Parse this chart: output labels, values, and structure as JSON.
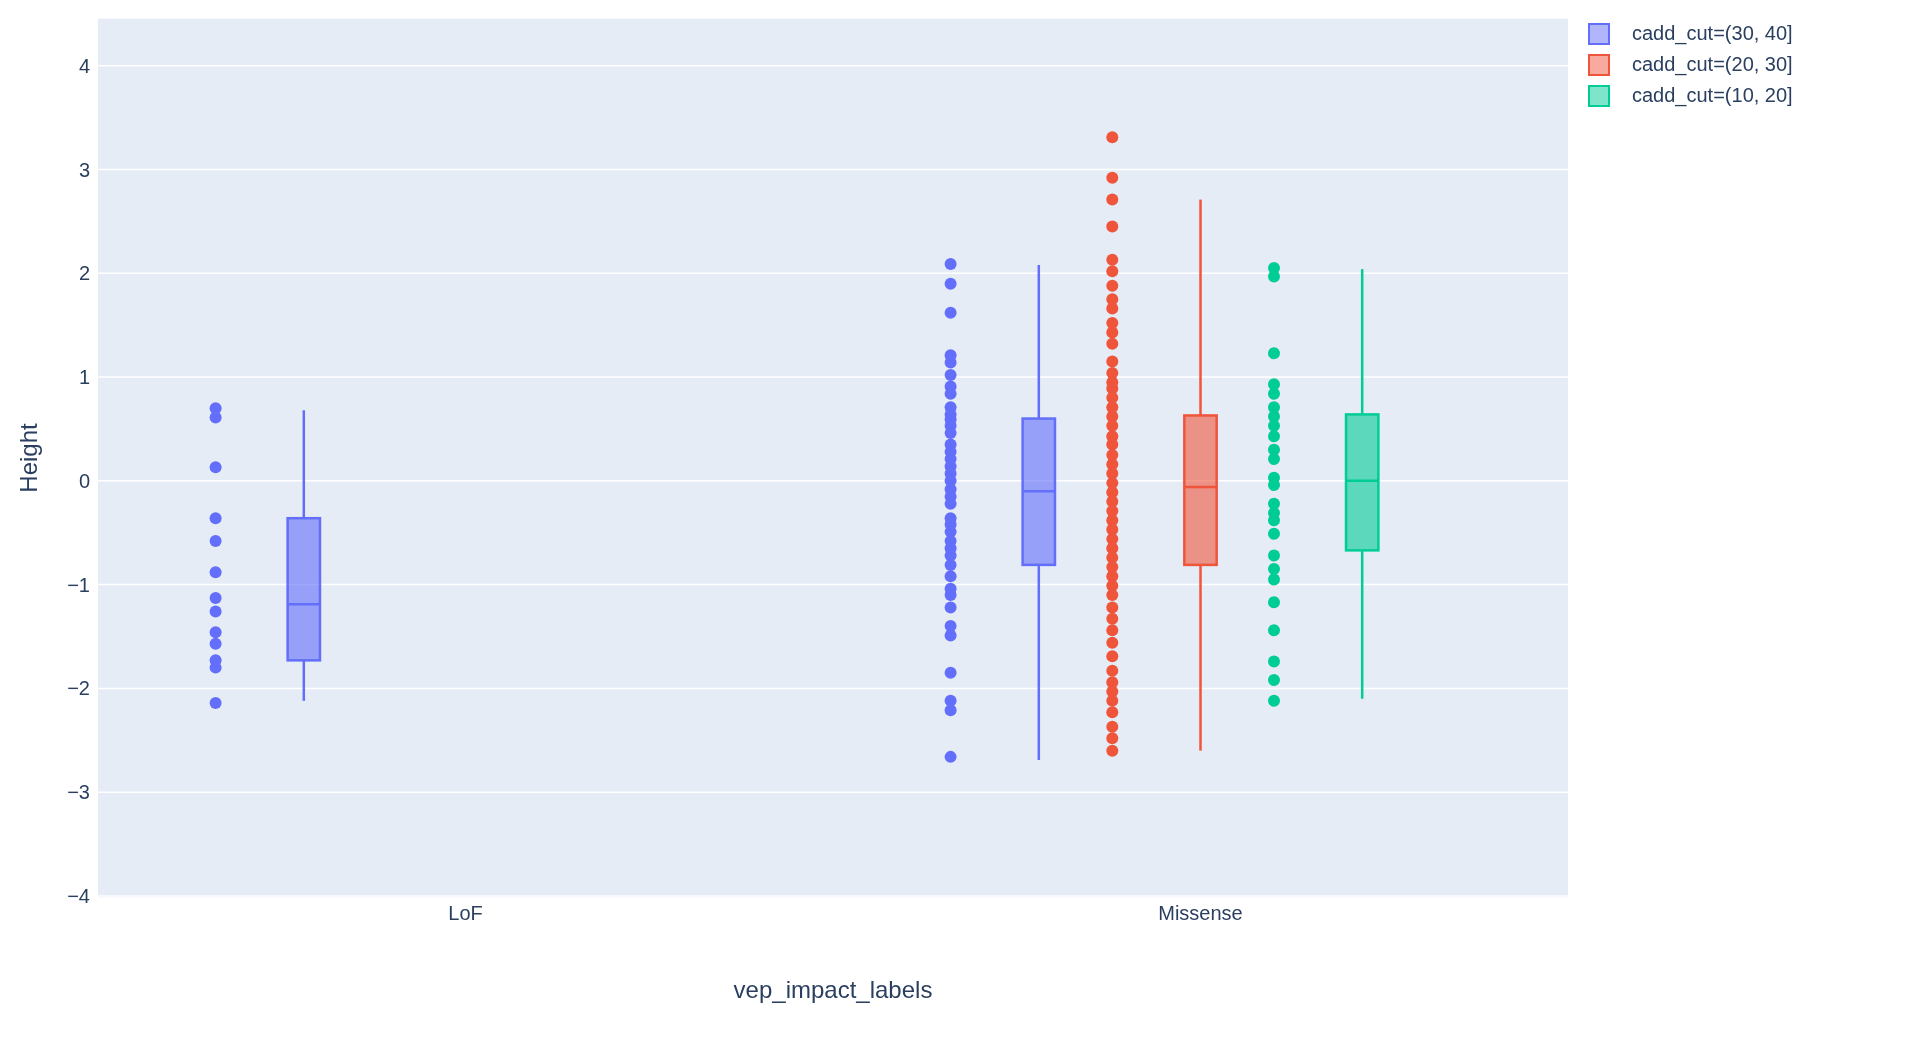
{
  "chart_data": {
    "type": "box",
    "xlabel": "vep_impact_labels",
    "ylabel": "Height",
    "categories": [
      "LoF",
      "Missense"
    ],
    "ylim": [
      -4.02,
      4.46
    ],
    "yticks": [
      -4,
      -3,
      -2,
      -1,
      0,
      1,
      2,
      3,
      4
    ],
    "grid": "y",
    "legend": "top right",
    "marker": "circle",
    "series": [
      {
        "name": "cadd_cut=(30, 40]",
        "color": "#636efa",
        "boxes": [
          {
            "low": -2.12,
            "q1": -1.73,
            "median": -1.19,
            "q3": -0.36,
            "high": 0.68
          },
          {
            "low": -2.69,
            "q1": -0.81,
            "median": -0.1,
            "q3": 0.6,
            "high": 2.08
          }
        ]
      },
      {
        "name": "cadd_cut=(20, 30]",
        "color": "#ef553b",
        "boxes": [
          null,
          {
            "low": -2.6,
            "q1": -0.81,
            "median": -0.06,
            "q3": 0.63,
            "high": 2.71
          }
        ]
      },
      {
        "name": "cadd_cut=(10, 20]",
        "color": "#00cc96",
        "boxes": [
          null,
          {
            "low": -2.1,
            "q1": -0.67,
            "median": 0,
            "q3": 0.64,
            "high": 2.04
          }
        ]
      },
      {
        "type": "scatter",
        "color": "#636efa",
        "x": [
          "LoF",
          "LoF",
          "LoF",
          "LoF",
          "LoF",
          "LoF",
          "LoF",
          "LoF",
          "LoF",
          "LoF",
          "LoF",
          "LoF",
          "LoF",
          "Missense",
          "Missense",
          "Missense",
          "Missense",
          "Missense",
          "Missense",
          "Missense",
          "Missense",
          "Missense",
          "Missense",
          "Missense",
          "Missense",
          "Missense",
          "Missense",
          "Missense",
          "Missense",
          "Missense",
          "Missense",
          "Missense",
          "Missense",
          "Missense",
          "Missense",
          "Missense",
          "Missense",
          "Missense",
          "Missense",
          "Missense",
          "Missense",
          "Missense",
          "Missense",
          "Missense",
          "Missense",
          "Missense",
          "Missense",
          "Missense",
          "Missense",
          "Missense",
          "Missense",
          "Missense"
        ],
        "values": [
          0.7,
          0.61,
          0.13,
          -0.36,
          -0.58,
          -0.88,
          -1.13,
          -1.26,
          -1.46,
          -1.57,
          -1.73,
          -1.8,
          -2.14,
          2.09,
          1.9,
          1.62,
          1.14,
          1.21,
          1.02,
          0.91,
          0.84,
          0.71,
          0.64,
          0.59,
          0.53,
          0.46,
          0.35,
          0.28,
          0.21,
          0.14,
          0.07,
          0,
          -0.08,
          -0.15,
          -0.22,
          -0.36,
          -0.42,
          -0.49,
          -0.58,
          -0.65,
          -0.72,
          -0.81,
          -0.92,
          -1.04,
          -1.1,
          -1.22,
          -1.4,
          -1.49,
          -1.85,
          -2.12,
          -2.21,
          -2.66
        ]
      },
      {
        "type": "scatter",
        "color": "#ef553b",
        "x": [
          "Missense",
          "Missense",
          "Missense",
          "Missense",
          "Missense",
          "Missense",
          "Missense",
          "Missense",
          "Missense",
          "Missense",
          "Missense",
          "Missense",
          "Missense",
          "Missense",
          "Missense",
          "Missense",
          "Missense",
          "Missense",
          "Missense",
          "Missense",
          "Missense",
          "Missense",
          "Missense",
          "Missense",
          "Missense",
          "Missense",
          "Missense",
          "Missense",
          "Missense",
          "Missense",
          "Missense",
          "Missense",
          "Missense",
          "Missense",
          "Missense",
          "Missense",
          "Missense",
          "Missense",
          "Missense",
          "Missense",
          "Missense",
          "Missense",
          "Missense",
          "Missense",
          "Missense",
          "Missense",
          "Missense",
          "Missense",
          "Missense",
          "Missense",
          "Missense"
        ],
        "values": [
          3.31,
          2.92,
          2.71,
          2.45,
          2.13,
          2.02,
          1.88,
          1.75,
          1.66,
          1.52,
          1.43,
          1.32,
          1.15,
          1.04,
          0.95,
          0.89,
          0.8,
          0.71,
          0.62,
          0.53,
          0.43,
          0.35,
          0.25,
          0.16,
          0.07,
          -0.02,
          -0.11,
          -0.2,
          -0.29,
          -0.38,
          -0.47,
          -0.56,
          -0.65,
          -0.74,
          -0.83,
          -0.92,
          -1.01,
          -1.1,
          -1.22,
          -1.33,
          -1.44,
          -1.56,
          -1.69,
          -1.83,
          -1.94,
          -2.03,
          -2.12,
          -2.23,
          -2.37,
          -2.48,
          -2.6
        ]
      },
      {
        "type": "scatter",
        "color": "#00cc96",
        "x": [
          "Missense",
          "Missense",
          "Missense",
          "Missense",
          "Missense",
          "Missense",
          "Missense",
          "Missense",
          "Missense",
          "Missense",
          "Missense",
          "Missense",
          "Missense",
          "Missense",
          "Missense",
          "Missense",
          "Missense",
          "Missense",
          "Missense",
          "Missense",
          "Missense",
          "Missense",
          "Missense",
          "Missense",
          "Missense"
        ],
        "values": [
          2.05,
          1.97,
          1.23,
          0.93,
          0.84,
          0.71,
          0.62,
          0.53,
          0.43,
          0.3,
          0.21,
          0.03,
          -0.04,
          -0.22,
          -0.31,
          -0.38,
          -0.51,
          -0.72,
          -0.85,
          -0.95,
          -1.17,
          -1.44,
          -1.74,
          -1.92,
          -2.12
        ]
      }
    ]
  }
}
